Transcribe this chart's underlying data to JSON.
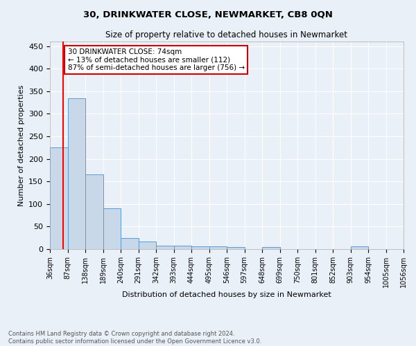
{
  "title": "30, DRINKWATER CLOSE, NEWMARKET, CB8 0QN",
  "subtitle": "Size of property relative to detached houses in Newmarket",
  "xlabel": "Distribution of detached houses by size in Newmarket",
  "ylabel": "Number of detached properties",
  "bar_color": "#c8d8e8",
  "bar_edge_color": "#5b9bd5",
  "bg_color": "#eaf0f8",
  "grid_color": "#ffffff",
  "red_line_x": 74,
  "bin_edges": [
    36,
    87,
    138,
    189,
    240,
    291,
    342,
    393,
    444,
    495,
    546,
    597,
    648,
    699,
    750,
    801,
    852,
    903,
    954,
    1005,
    1056
  ],
  "bar_heights": [
    225,
    335,
    166,
    90,
    24,
    17,
    8,
    8,
    6,
    6,
    5,
    0,
    5,
    0,
    0,
    0,
    0,
    6,
    0,
    0
  ],
  "annotation_text": "30 DRINKWATER CLOSE: 74sqm\n← 13% of detached houses are smaller (112)\n87% of semi-detached houses are larger (756) →",
  "annotation_box_color": "#ffffff",
  "annotation_border_color": "#cc0000",
  "footnote": "Contains HM Land Registry data © Crown copyright and database right 2024.\nContains public sector information licensed under the Open Government Licence v3.0.",
  "ylim": [
    0,
    460
  ],
  "yticks": [
    0,
    50,
    100,
    150,
    200,
    250,
    300,
    350,
    400,
    450
  ],
  "tick_labels": [
    "36sqm",
    "87sqm",
    "138sqm",
    "189sqm",
    "240sqm",
    "291sqm",
    "342sqm",
    "393sqm",
    "444sqm",
    "495sqm",
    "546sqm",
    "597sqm",
    "648sqm",
    "699sqm",
    "750sqm",
    "801sqm",
    "852sqm",
    "903sqm",
    "954sqm",
    "1005sqm",
    "1056sqm"
  ]
}
